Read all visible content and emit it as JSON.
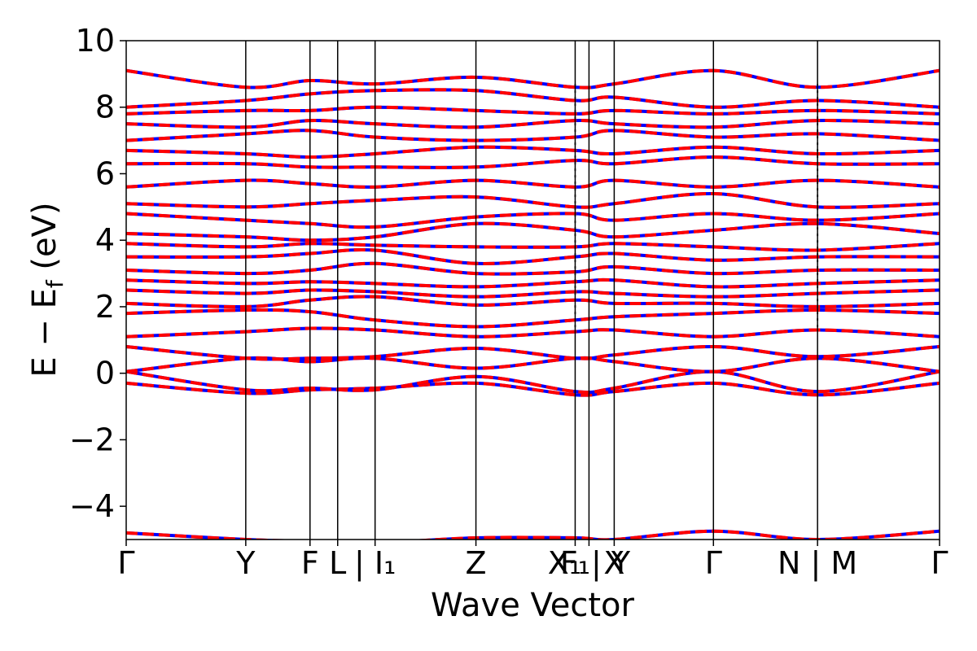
{
  "chart_data": {
    "type": "line",
    "title": "",
    "xlabel": "Wave Vector",
    "ylabel": "E − E",
    "ylabel_subscript": "f",
    "ylabel_unit": " (eV)",
    "ylim": [
      -5,
      10
    ],
    "yticks": [
      -4,
      -2,
      0,
      2,
      4,
      6,
      8,
      10
    ],
    "ytick_labels": [
      "−4",
      "−2",
      "0",
      "2",
      "4",
      "6",
      "8",
      "10"
    ],
    "xlim": [
      0,
      1
    ],
    "grid": false,
    "legend": "none",
    "kpath": [
      {
        "x": 0.0,
        "label": "Γ"
      },
      {
        "x": 0.147,
        "label": "Y"
      },
      {
        "x": 0.226,
        "label": "F"
      },
      {
        "x": 0.26,
        "label": "L"
      },
      {
        "x": 0.306,
        "label": "| I₁"
      },
      {
        "x": 0.43,
        "label": "Z"
      },
      {
        "x": 0.552,
        "label": "F₁"
      },
      {
        "x": 0.569,
        "label": "X₁ | Y"
      },
      {
        "x": 0.6,
        "label": "X"
      },
      {
        "x": 0.722,
        "label": "Γ"
      },
      {
        "x": 0.85,
        "label": "N | M"
      },
      {
        "x": 1.0,
        "label": "Γ"
      }
    ],
    "discontinuities": [
      0.552,
      0.85
    ],
    "colors": {
      "spin_up": "#ff0000",
      "spin_down": "#0000ff",
      "kline": "#000000"
    },
    "series": [
      {
        "values": [
          [
            0,
            -4.8
          ],
          [
            0.147,
            -5.0
          ],
          [
            0.226,
            -5.05
          ],
          [
            0.306,
            -5.1
          ],
          [
            0.43,
            -4.95
          ],
          [
            0.552,
            -4.95
          ],
          [
            0.6,
            -5.0
          ],
          [
            0.722,
            -4.75
          ],
          [
            0.85,
            -5.0
          ],
          [
            1.0,
            -4.75
          ]
        ]
      },
      {
        "values": [
          [
            0,
            -0.3
          ],
          [
            0.147,
            -0.6
          ],
          [
            0.226,
            -0.5
          ],
          [
            0.306,
            -0.45
          ],
          [
            0.43,
            -0.3
          ],
          [
            0.552,
            -0.65
          ],
          [
            0.6,
            -0.55
          ],
          [
            0.722,
            -0.3
          ],
          [
            0.85,
            -0.65
          ],
          [
            1.0,
            -0.3
          ]
        ]
      },
      {
        "values": [
          [
            0,
            0.05
          ],
          [
            0.147,
            -0.5
          ],
          [
            0.226,
            -0.45
          ],
          [
            0.306,
            -0.5
          ],
          [
            0.43,
            -0.1
          ],
          [
            0.552,
            -0.55
          ],
          [
            0.6,
            -0.45
          ],
          [
            0.722,
            0.05
          ],
          [
            0.85,
            -0.55
          ],
          [
            1.0,
            0.05
          ]
        ]
      },
      {
        "values": [
          [
            0,
            0.05
          ],
          [
            0.147,
            0.45
          ],
          [
            0.226,
            0.35
          ],
          [
            0.306,
            0.45
          ],
          [
            0.43,
            0.15
          ],
          [
            0.552,
            0.45
          ],
          [
            0.6,
            0.35
          ],
          [
            0.722,
            0.05
          ],
          [
            0.85,
            0.45
          ],
          [
            1.0,
            0.05
          ]
        ]
      },
      {
        "values": [
          [
            0,
            0.8
          ],
          [
            0.147,
            0.45
          ],
          [
            0.226,
            0.45
          ],
          [
            0.306,
            0.5
          ],
          [
            0.43,
            0.75
          ],
          [
            0.552,
            0.45
          ],
          [
            0.6,
            0.55
          ],
          [
            0.722,
            0.8
          ],
          [
            0.85,
            0.5
          ],
          [
            1.0,
            0.8
          ]
        ]
      },
      {
        "values": [
          [
            0,
            1.1
          ],
          [
            0.147,
            1.25
          ],
          [
            0.226,
            1.35
          ],
          [
            0.306,
            1.3
          ],
          [
            0.43,
            1.1
          ],
          [
            0.552,
            1.25
          ],
          [
            0.6,
            1.3
          ],
          [
            0.722,
            1.1
          ],
          [
            0.85,
            1.3
          ],
          [
            1.0,
            1.1
          ]
        ]
      },
      {
        "values": [
          [
            0,
            1.8
          ],
          [
            0.147,
            1.9
          ],
          [
            0.226,
            1.85
          ],
          [
            0.306,
            1.6
          ],
          [
            0.43,
            1.4
          ],
          [
            0.552,
            1.6
          ],
          [
            0.6,
            1.7
          ],
          [
            0.722,
            1.8
          ],
          [
            0.85,
            1.9
          ],
          [
            1.0,
            1.8
          ]
        ]
      },
      {
        "values": [
          [
            0,
            2.1
          ],
          [
            0.147,
            2.0
          ],
          [
            0.226,
            2.2
          ],
          [
            0.306,
            2.3
          ],
          [
            0.43,
            2.05
          ],
          [
            0.552,
            2.2
          ],
          [
            0.6,
            2.1
          ],
          [
            0.722,
            2.1
          ],
          [
            0.85,
            2.0
          ],
          [
            1.0,
            2.1
          ]
        ]
      },
      {
        "values": [
          [
            0,
            2.5
          ],
          [
            0.147,
            2.4
          ],
          [
            0.226,
            2.5
          ],
          [
            0.306,
            2.45
          ],
          [
            0.43,
            2.3
          ],
          [
            0.552,
            2.45
          ],
          [
            0.6,
            2.4
          ],
          [
            0.722,
            2.3
          ],
          [
            0.85,
            2.4
          ],
          [
            1.0,
            2.5
          ]
        ]
      },
      {
        "values": [
          [
            0,
            2.8
          ],
          [
            0.147,
            2.7
          ],
          [
            0.226,
            2.75
          ],
          [
            0.306,
            2.7
          ],
          [
            0.43,
            2.6
          ],
          [
            0.552,
            2.75
          ],
          [
            0.6,
            2.8
          ],
          [
            0.722,
            2.6
          ],
          [
            0.85,
            2.7
          ],
          [
            1.0,
            2.8
          ]
        ]
      },
      {
        "values": [
          [
            0,
            3.1
          ],
          [
            0.147,
            3.0
          ],
          [
            0.226,
            3.1
          ],
          [
            0.306,
            3.3
          ],
          [
            0.43,
            3.0
          ],
          [
            0.552,
            3.05
          ],
          [
            0.6,
            3.2
          ],
          [
            0.722,
            3.0
          ],
          [
            0.85,
            3.1
          ],
          [
            1.0,
            3.1
          ]
        ]
      },
      {
        "values": [
          [
            0,
            3.5
          ],
          [
            0.147,
            3.5
          ],
          [
            0.226,
            3.6
          ],
          [
            0.306,
            3.7
          ],
          [
            0.43,
            3.3
          ],
          [
            0.552,
            3.5
          ],
          [
            0.6,
            3.6
          ],
          [
            0.722,
            3.4
          ],
          [
            0.85,
            3.5
          ],
          [
            1.0,
            3.5
          ]
        ]
      },
      {
        "values": [
          [
            0,
            3.9
          ],
          [
            0.147,
            3.8
          ],
          [
            0.226,
            3.9
          ],
          [
            0.306,
            3.85
          ],
          [
            0.43,
            3.8
          ],
          [
            0.552,
            3.8
          ],
          [
            0.6,
            3.9
          ],
          [
            0.722,
            3.8
          ],
          [
            0.85,
            3.7
          ],
          [
            1.0,
            3.9
          ]
        ]
      },
      {
        "values": [
          [
            0,
            4.2
          ],
          [
            0.147,
            4.1
          ],
          [
            0.226,
            4.0
          ],
          [
            0.306,
            4.1
          ],
          [
            0.43,
            4.5
          ],
          [
            0.552,
            4.3
          ],
          [
            0.6,
            4.1
          ],
          [
            0.722,
            4.3
          ],
          [
            0.85,
            4.5
          ],
          [
            1.0,
            4.2
          ]
        ]
      },
      {
        "values": [
          [
            0,
            4.8
          ],
          [
            0.147,
            4.6
          ],
          [
            0.226,
            4.5
          ],
          [
            0.306,
            4.4
          ],
          [
            0.43,
            4.7
          ],
          [
            0.552,
            4.8
          ],
          [
            0.6,
            4.6
          ],
          [
            0.722,
            4.8
          ],
          [
            0.85,
            4.6
          ],
          [
            1.0,
            4.8
          ]
        ]
      },
      {
        "values": [
          [
            0,
            5.1
          ],
          [
            0.147,
            5.0
          ],
          [
            0.226,
            5.1
          ],
          [
            0.306,
            5.2
          ],
          [
            0.43,
            5.3
          ],
          [
            0.552,
            5.0
          ],
          [
            0.6,
            5.1
          ],
          [
            0.722,
            5.4
          ],
          [
            0.85,
            5.0
          ],
          [
            1.0,
            5.1
          ]
        ]
      },
      {
        "values": [
          [
            0,
            5.6
          ],
          [
            0.147,
            5.8
          ],
          [
            0.226,
            5.7
          ],
          [
            0.306,
            5.6
          ],
          [
            0.43,
            5.8
          ],
          [
            0.552,
            5.6
          ],
          [
            0.6,
            5.8
          ],
          [
            0.722,
            5.6
          ],
          [
            0.85,
            5.8
          ],
          [
            1.0,
            5.6
          ]
        ]
      },
      {
        "values": [
          [
            0,
            6.3
          ],
          [
            0.147,
            6.3
          ],
          [
            0.226,
            6.2
          ],
          [
            0.306,
            6.2
          ],
          [
            0.43,
            6.2
          ],
          [
            0.552,
            6.4
          ],
          [
            0.6,
            6.3
          ],
          [
            0.722,
            6.5
          ],
          [
            0.85,
            6.3
          ],
          [
            1.0,
            6.3
          ]
        ]
      },
      {
        "values": [
          [
            0,
            6.7
          ],
          [
            0.147,
            6.6
          ],
          [
            0.226,
            6.5
          ],
          [
            0.306,
            6.6
          ],
          [
            0.43,
            6.8
          ],
          [
            0.552,
            6.7
          ],
          [
            0.6,
            6.6
          ],
          [
            0.722,
            6.8
          ],
          [
            0.85,
            6.6
          ],
          [
            1.0,
            6.7
          ]
        ]
      },
      {
        "values": [
          [
            0,
            7.0
          ],
          [
            0.147,
            7.2
          ],
          [
            0.226,
            7.3
          ],
          [
            0.306,
            7.1
          ],
          [
            0.43,
            7.0
          ],
          [
            0.552,
            7.1
          ],
          [
            0.6,
            7.3
          ],
          [
            0.722,
            7.1
          ],
          [
            0.85,
            7.2
          ],
          [
            1.0,
            7.0
          ]
        ]
      },
      {
        "values": [
          [
            0,
            7.5
          ],
          [
            0.147,
            7.4
          ],
          [
            0.226,
            7.6
          ],
          [
            0.306,
            7.5
          ],
          [
            0.43,
            7.4
          ],
          [
            0.552,
            7.6
          ],
          [
            0.6,
            7.5
          ],
          [
            0.722,
            7.4
          ],
          [
            0.85,
            7.6
          ],
          [
            1.0,
            7.5
          ]
        ]
      },
      {
        "values": [
          [
            0,
            7.8
          ],
          [
            0.147,
            7.9
          ],
          [
            0.226,
            7.9
          ],
          [
            0.306,
            8.0
          ],
          [
            0.43,
            7.9
          ],
          [
            0.552,
            7.8
          ],
          [
            0.6,
            7.9
          ],
          [
            0.722,
            7.8
          ],
          [
            0.85,
            7.9
          ],
          [
            1.0,
            7.8
          ]
        ]
      },
      {
        "values": [
          [
            0,
            8.0
          ],
          [
            0.147,
            8.2
          ],
          [
            0.226,
            8.4
          ],
          [
            0.306,
            8.5
          ],
          [
            0.43,
            8.5
          ],
          [
            0.552,
            8.2
          ],
          [
            0.6,
            8.3
          ],
          [
            0.722,
            8.0
          ],
          [
            0.85,
            8.2
          ],
          [
            1.0,
            8.0
          ]
        ]
      },
      {
        "values": [
          [
            0,
            9.1
          ],
          [
            0.147,
            8.6
          ],
          [
            0.226,
            8.8
          ],
          [
            0.306,
            8.7
          ],
          [
            0.43,
            8.9
          ],
          [
            0.552,
            8.6
          ],
          [
            0.6,
            8.7
          ],
          [
            0.722,
            9.1
          ],
          [
            0.85,
            8.6
          ],
          [
            1.0,
            9.1
          ]
        ]
      }
    ]
  }
}
